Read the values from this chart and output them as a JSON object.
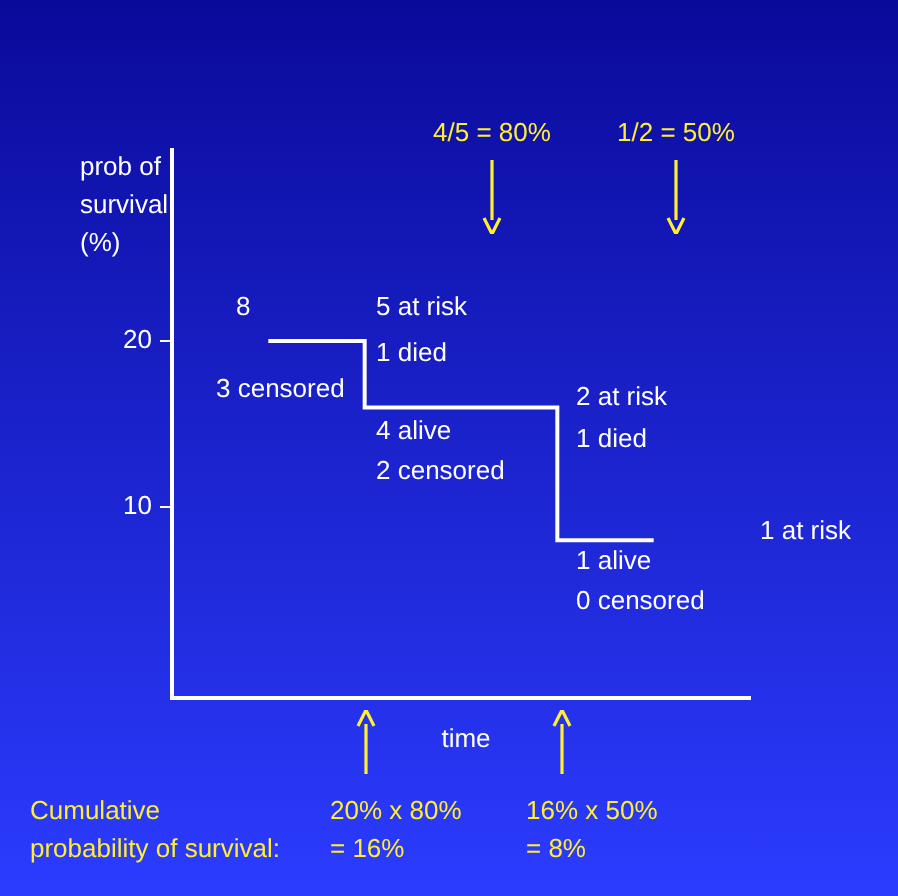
{
  "chart_data": {
    "type": "step",
    "categories": [
      null,
      null,
      null
    ],
    "series": [
      {
        "color": "#ffffff",
        "values": [
          20,
          16,
          8
        ]
      }
    ],
    "ylabel": "prob of\nsurvival\n(%)",
    "xlabel": "time",
    "ylim": [
      -1.5,
      31.5
    ],
    "yticks": [
      10,
      20
    ],
    "tick_labels": "y",
    "legend": false,
    "marker": "none",
    "line_style": "solid",
    "annotations": [
      "4/5 = 80%",
      "1/2 = 50%",
      "8",
      "5 at risk",
      "1 died",
      "3 censored",
      "4 alive",
      "2 censored",
      "2 at risk",
      "1 died",
      "1 alive",
      "0 censored",
      "1 at risk",
      "20% x 80%\n= 16%",
      "16% x 50%\n= 8%",
      "Cumulative\nprobability of survival:"
    ]
  }
}
